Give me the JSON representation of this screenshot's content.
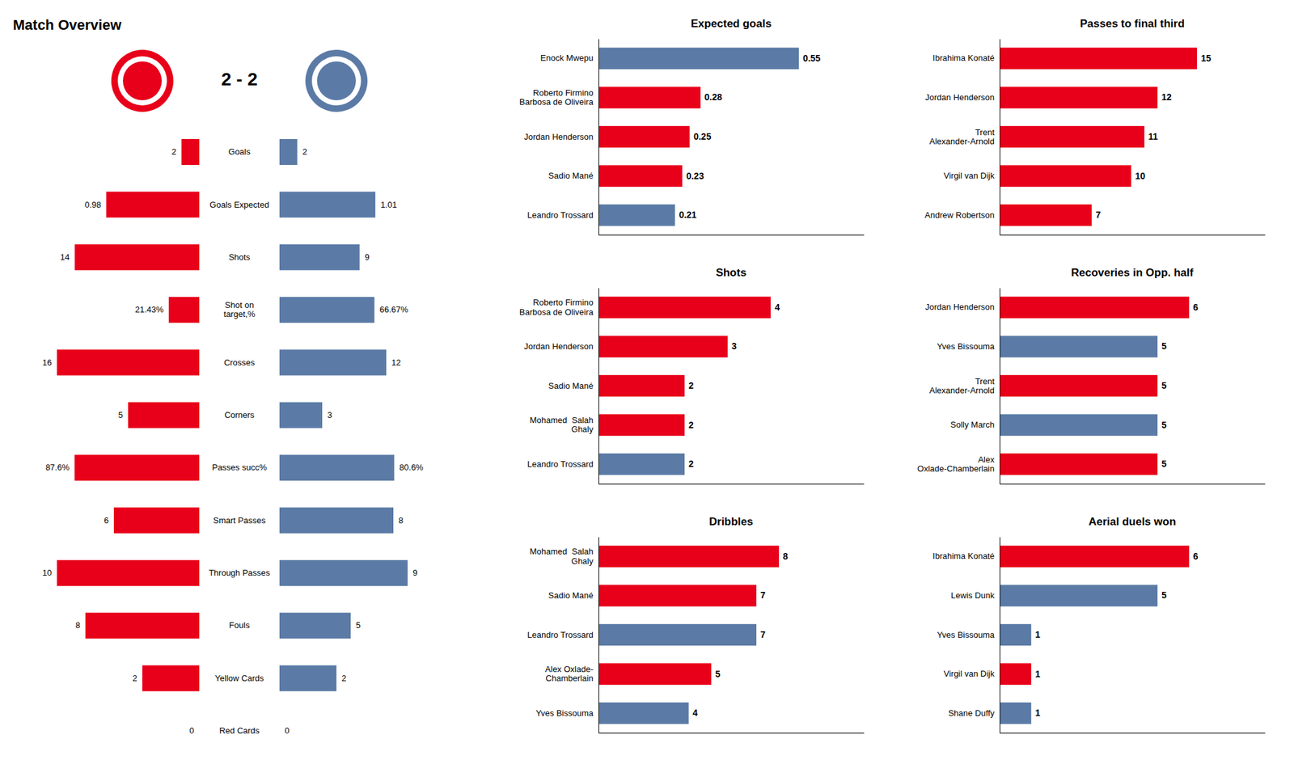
{
  "chart_data": [
    {
      "type": "bar",
      "orientation": "horizontal",
      "title": "Match Overview",
      "subtitle": "2 - 2",
      "categories": [
        "Goals",
        "Goals Expected",
        "Shots",
        "Shot on\ntarget,%",
        "Crosses",
        "Corners",
        "Passes succ%",
        "Smart Passes",
        "Through Passes",
        "Fouls",
        "Yellow Cards",
        "Red Cards"
      ],
      "series": [
        {
          "color": "#E8001A",
          "values": [
            2,
            0.98,
            14,
            21.43,
            16,
            5,
            87.6,
            6,
            10,
            8,
            2,
            0
          ],
          "value_labels": [
            "2",
            "0.98",
            "14",
            "21.43%",
            "16",
            "5",
            "87.6%",
            "6",
            "10",
            "8",
            "2",
            "0"
          ]
        },
        {
          "color": "#5B7BA6",
          "values": [
            2,
            1.01,
            9,
            66.67,
            12,
            3,
            80.6,
            8,
            9,
            5,
            2,
            0
          ],
          "value_labels": [
            "2",
            "1.01",
            "9",
            "66.67%",
            "12",
            "3",
            "80.6%",
            "8",
            "9",
            "5",
            "2",
            "0"
          ]
        }
      ],
      "row_max": [
        16,
        1.5,
        16,
        100,
        16,
        10,
        100,
        10,
        10,
        10,
        5,
        5
      ],
      "data_labels": true,
      "tick_labels": "y"
    },
    {
      "type": "bar",
      "orientation": "horizontal",
      "title": "Expected goals",
      "categories": [
        "Enock Mwepu",
        "Roberto Firmino\nBarbosa de Oliveira",
        "Jordan Henderson",
        "Sadio Mané",
        "Leandro Trossard"
      ],
      "values": [
        0.55,
        0.28,
        0.25,
        0.23,
        0.21
      ],
      "colors": [
        "#5B7BA6",
        "#E8001A",
        "#E8001A",
        "#E8001A",
        "#5B7BA6"
      ],
      "xlim": [
        0,
        0.728
      ],
      "data_labels": true,
      "tick_labels": "y"
    },
    {
      "type": "bar",
      "orientation": "horizontal",
      "title": "Shots",
      "categories": [
        "Roberto Firmino\nBarbosa de Oliveira",
        "Jordan Henderson",
        "Sadio Mané",
        "Mohamed  Salah\nGhaly",
        "Leandro Trossard"
      ],
      "values": [
        4,
        3,
        2,
        2,
        2
      ],
      "colors": [
        "#E8001A",
        "#E8001A",
        "#E8001A",
        "#E8001A",
        "#5B7BA6"
      ],
      "xlim": [
        0,
        6.16
      ],
      "data_labels": true,
      "tick_labels": "y"
    },
    {
      "type": "bar",
      "orientation": "horizontal",
      "title": "Dribbles",
      "categories": [
        "Mohamed  Salah\nGhaly",
        "Sadio Mané",
        "Leandro Trossard",
        "Alex Oxlade-\nChamberlain",
        "Yves Bissouma"
      ],
      "values": [
        8,
        7,
        7,
        5,
        4
      ],
      "colors": [
        "#E8001A",
        "#E8001A",
        "#5B7BA6",
        "#E8001A",
        "#5B7BA6"
      ],
      "xlim": [
        0,
        11.76
      ],
      "data_labels": true,
      "tick_labels": "y"
    },
    {
      "type": "bar",
      "orientation": "horizontal",
      "title": "Passes to final third",
      "categories": [
        "Ibrahima Konaté",
        "Jordan Henderson",
        "Trent\nAlexander-Arnold",
        "Virgil van Dijk",
        "Andrew Robertson"
      ],
      "values": [
        15,
        12,
        11,
        10,
        7
      ],
      "colors": [
        "#E8001A",
        "#E8001A",
        "#E8001A",
        "#E8001A",
        "#E8001A"
      ],
      "xlim": [
        0,
        20.16
      ],
      "data_labels": true,
      "tick_labels": "y"
    },
    {
      "type": "bar",
      "orientation": "horizontal",
      "title": "Recoveries in Opp. half",
      "categories": [
        "Jordan Henderson",
        "Yves Bissouma",
        "Trent\nAlexander-Arnold",
        "Solly March",
        "Alex\nOxlade-Chamberlain"
      ],
      "values": [
        6,
        5,
        5,
        5,
        5
      ],
      "colors": [
        "#E8001A",
        "#5B7BA6",
        "#E8001A",
        "#5B7BA6",
        "#E8001A"
      ],
      "xlim": [
        0,
        8.4
      ],
      "data_labels": true,
      "tick_labels": "y"
    },
    {
      "type": "bar",
      "orientation": "horizontal",
      "title": "Aerial duels won",
      "categories": [
        "Ibrahima Konaté",
        "Lewis Dunk",
        "Yves Bissouma",
        "Virgil van Dijk",
        "Shane Duffy"
      ],
      "values": [
        6,
        5,
        1,
        1,
        1
      ],
      "colors": [
        "#E8001A",
        "#5B7BA6",
        "#5B7BA6",
        "#E8001A",
        "#5B7BA6"
      ],
      "xlim": [
        0,
        8.4
      ],
      "data_labels": true,
      "tick_labels": "y"
    }
  ]
}
